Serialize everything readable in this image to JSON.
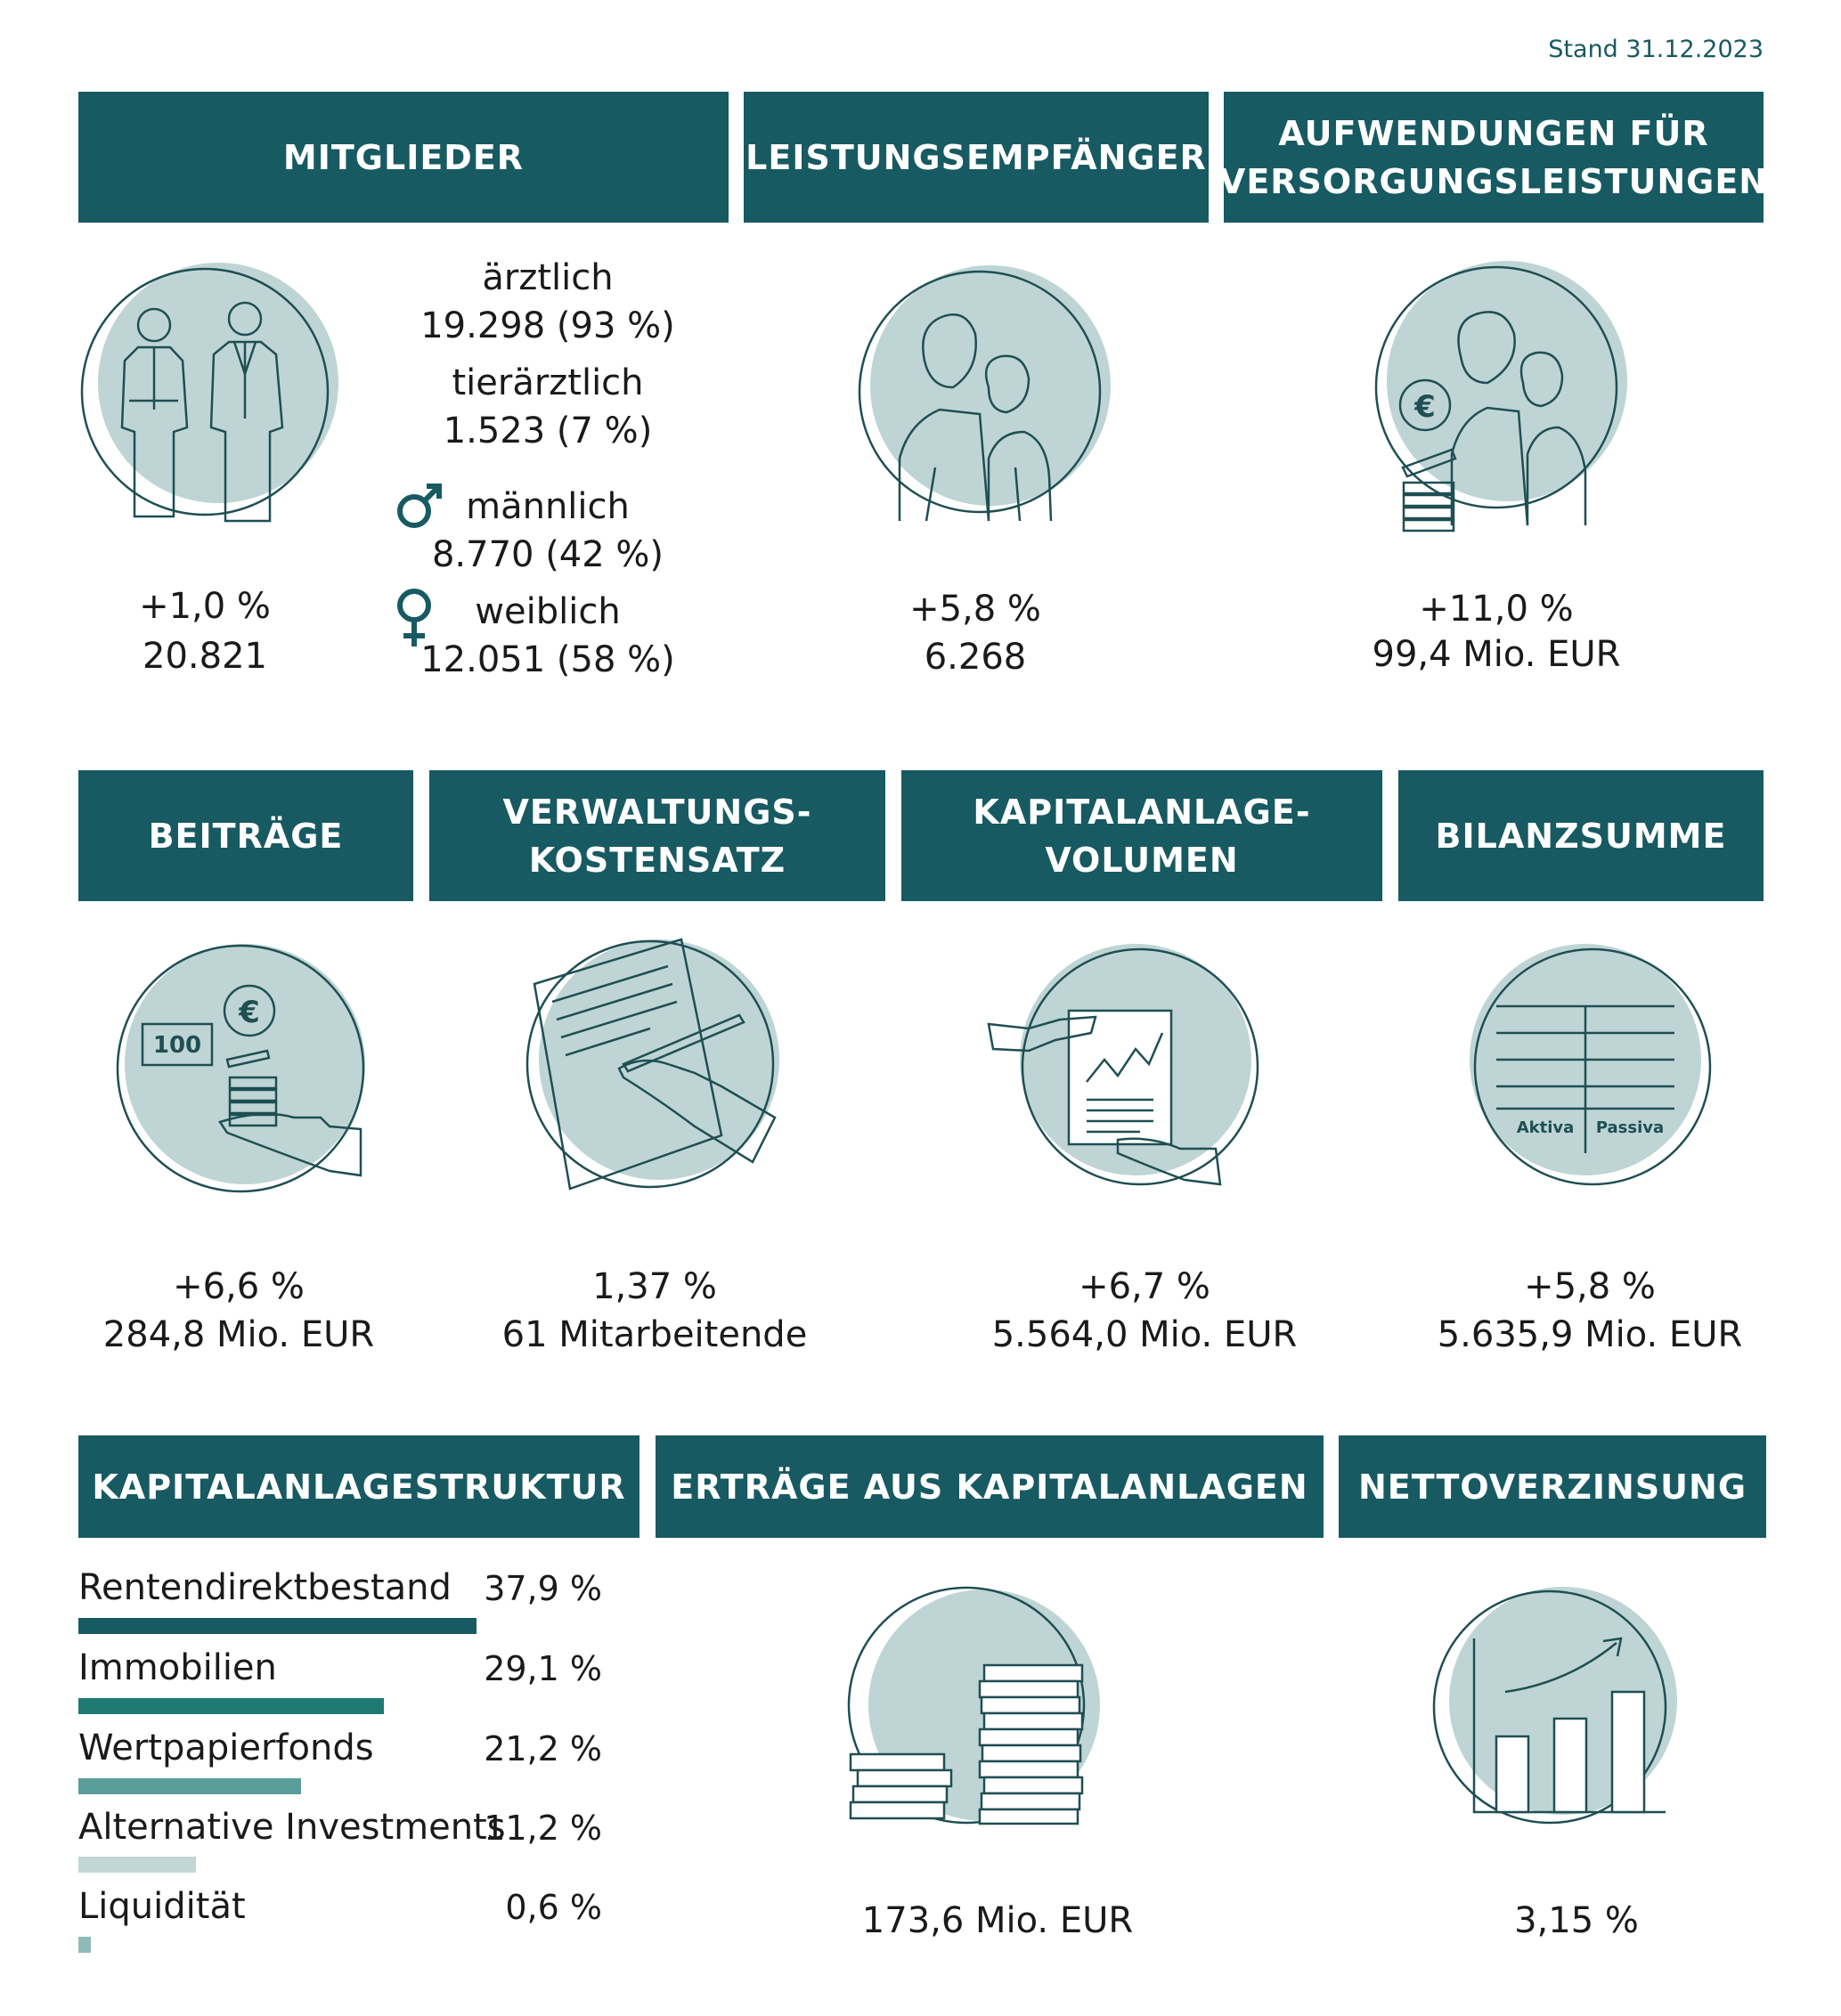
{
  "stand": "Stand 31.12.2023",
  "mitglieder": {
    "title": "MITGLIEDER",
    "change": "+1,0 %",
    "value": "20.821",
    "aerztlich_label": "ärztlich",
    "aerztlich_value": "19.298 (93 %)",
    "tieraerztlich_label": "tierärztlich",
    "tieraerztlich_value": "1.523 (7 %)",
    "maennlich_label": "männlich",
    "maennlich_value": "8.770 (42 %)",
    "weiblich_label": "weiblich",
    "weiblich_value": "12.051 (58 %)"
  },
  "leistungsempfaenger": {
    "title": "LEISTUNGSEMPFÄNGER",
    "change": "+5,8 %",
    "value": "6.268"
  },
  "aufwendungen": {
    "title": "AUFWENDUNGEN FÜR\nVERSORGUNGSLEISTUNGEN",
    "change": "+11,0 %",
    "value": "99,4 Mio. EUR"
  },
  "beitraege": {
    "title": "BEITRÄGE",
    "change": "+6,6 %",
    "value": "284,8 Mio. EUR",
    "banknote": "100"
  },
  "verwaltung": {
    "title": "VERWALTUNGS-\nKOSTENSATZ",
    "change": "1,37 %",
    "value": "61 Mitarbeitende"
  },
  "kapitalanlagevolumen": {
    "title": "KAPITALANLAGE-\nVOLUMEN",
    "change": "+6,7 %",
    "value": "5.564,0 Mio. EUR"
  },
  "bilanzsumme": {
    "title": "BILANZSUMME",
    "change": "+5,8 %",
    "value": "5.635,9 Mio. EUR",
    "aktiva": "Aktiva",
    "passiva": "Passiva"
  },
  "struktur": {
    "title": "KAPITALANLAGESTRUKTUR",
    "items": [
      {
        "label": "Rentendirektbestand",
        "pct": "37,9 %",
        "value": 37.9,
        "color": "#175a62"
      },
      {
        "label": "Immobilien",
        "pct": "29,1 %",
        "value": 29.1,
        "color": "#1c7a73"
      },
      {
        "label": "Wertpapierfonds",
        "pct": "21,2 %",
        "value": 21.2,
        "color": "#5a9e9a"
      },
      {
        "label": "Alternative Investments",
        "pct": "11,2 %",
        "value": 11.2,
        "color": "#c2d6d6"
      },
      {
        "label": "Liquidität",
        "pct": "0,6 %",
        "value": 0.6,
        "color": "#8fbcb8"
      }
    ]
  },
  "ertraege": {
    "title": "ERTRÄGE AUS KAPITALANLAGEN",
    "value": "173,6 Mio. EUR"
  },
  "nettoverzinsung": {
    "title": "NETTOVERZINSUNG",
    "value": "3,15 %"
  },
  "colors": {
    "header": "#175a62",
    "circle": "#bfd5d5",
    "line": "#1f4f53"
  }
}
